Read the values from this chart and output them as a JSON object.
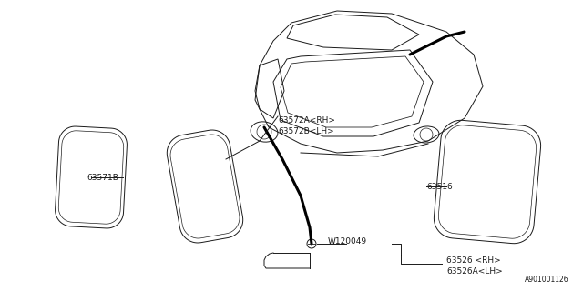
{
  "background_color": "#ffffff",
  "line_color": "#1a1a1a",
  "diagram_id": "A901001126",
  "label_63571B": "63571B",
  "label_63572": "63572A<RH>\n63572B<LH>",
  "label_63516": "63516",
  "label_W120049": "W120049",
  "label_63526": "63526 <RH>\n63526A<LH>",
  "font_size": 6.5
}
